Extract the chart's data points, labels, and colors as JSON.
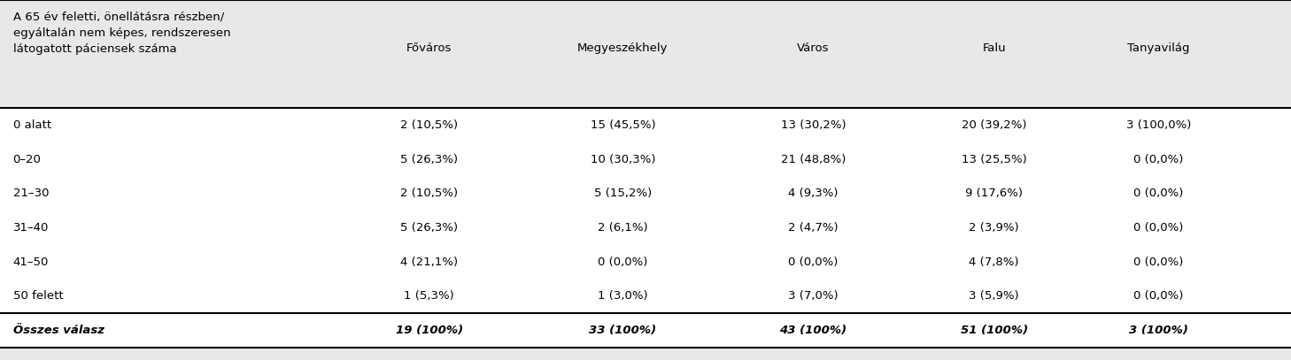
{
  "header_col": "A 65 év feletti, önellátásra részben/\negyáltalán nem képes, rendszeresen\nlátogatott páciensek száma",
  "columns": [
    "Főváros",
    "Megyeszékhely",
    "Város",
    "Falu",
    "Tanyavilág"
  ],
  "rows": [
    [
      "0 alatt",
      "2 (10,5%)",
      "15 (45,5%)",
      "13 (30,2%)",
      "20 (39,2%)",
      "3 (100,0%)"
    ],
    [
      "0–20",
      "5 (26,3%)",
      "10 (30,3%)",
      "21 (48,8%)",
      "13 (25,5%)",
      "0 (0,0%)"
    ],
    [
      "21–30",
      "2 (10,5%)",
      "5 (15,2%)",
      "4 (9,3%)",
      "9 (17,6%)",
      "0 (0,0%)"
    ],
    [
      "31–40",
      "5 (26,3%)",
      "2 (6,1%)",
      "2 (4,7%)",
      "2 (3,9%)",
      "0 (0,0%)"
    ],
    [
      "41–50",
      "4 (21,1%)",
      "0 (0,0%)",
      "0 (0,0%)",
      "4 (7,8%)",
      "0 (0,0%)"
    ],
    [
      "50 felett",
      "1 (5,3%)",
      "1 (3,0%)",
      "3 (7,0%)",
      "3 (5,9%)",
      "0 (0,0%)"
    ]
  ],
  "total_row": [
    "Összes válasz",
    "19 (100%)",
    "33 (100%)",
    "43 (100%)",
    "51 (100%)",
    "3 (100%)"
  ],
  "bg_header": "#e8e8e8",
  "bg_body": "#ffffff",
  "line_color": "#000000",
  "text_color": "#000000",
  "font_size": 9.5
}
